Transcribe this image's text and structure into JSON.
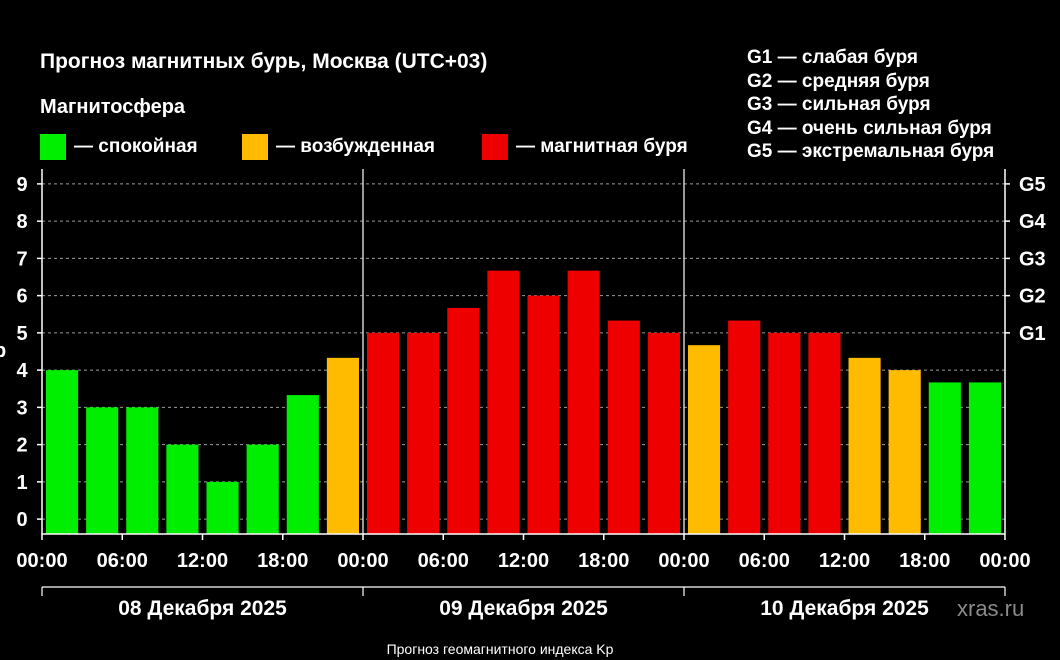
{
  "title": "Прогноз магнитных бурь, Москва (UTC+03)",
  "legend": {
    "title": "Магнитосфера",
    "items": [
      {
        "label": "— спокойная",
        "color": "#00ee00"
      },
      {
        "label": "— возбужденная",
        "color": "#ffbb00"
      },
      {
        "label": "— магнитная буря",
        "color": "#ee0000"
      }
    ]
  },
  "g_scale": [
    "G1 — слабая буря",
    "G2 — средняя буря",
    "G3 — сильная буря",
    "G4 — очень сильная буря",
    "G5 — экстремальная буря"
  ],
  "watermark": "xras.ru",
  "footnote": "Прогноз геомагнитного индекса Kp",
  "ylabel_fragment": "p",
  "chart_data": {
    "type": "bar",
    "title": "Прогноз магнитных бурь, Москва (UTC+03)",
    "ylabel": "Kp",
    "ylim": [
      -0.4,
      9.4
    ],
    "yticks": [
      "0",
      "1",
      "2",
      "3",
      "4",
      "5",
      "6",
      "7",
      "8",
      "9"
    ],
    "right_ticks": [
      {
        "label": "G1",
        "value": 5
      },
      {
        "label": "G2",
        "value": 6
      },
      {
        "label": "G3",
        "value": 7
      },
      {
        "label": "G4",
        "value": 8
      },
      {
        "label": "G5",
        "value": 9
      }
    ],
    "days": [
      {
        "label": "08 Декабря 2025",
        "ticks": [
          "00:00",
          "06:00",
          "12:00",
          "18:00"
        ]
      },
      {
        "label": "09 Декабря 2025",
        "ticks": [
          "00:00",
          "06:00",
          "12:00",
          "18:00"
        ]
      },
      {
        "label": "10 Декабря 2025",
        "ticks": [
          "00:00",
          "06:00",
          "12:00",
          "18:00",
          "00:00"
        ]
      }
    ],
    "interval_hours": 3,
    "values": [
      4.0,
      3.0,
      3.0,
      2.0,
      1.0,
      2.0,
      3.33,
      4.33,
      5.0,
      5.0,
      5.67,
      6.67,
      6.0,
      6.67,
      5.33,
      5.0,
      4.67,
      5.33,
      5.0,
      5.0,
      4.33,
      4.0,
      3.67,
      3.67
    ],
    "categories": [
      "quiet",
      "quiet",
      "quiet",
      "quiet",
      "quiet",
      "quiet",
      "quiet",
      "active",
      "storm",
      "storm",
      "storm",
      "storm",
      "storm",
      "storm",
      "storm",
      "storm",
      "active",
      "storm",
      "storm",
      "storm",
      "active",
      "active",
      "quiet",
      "quiet"
    ],
    "colors": {
      "quiet": "#00ee00",
      "active": "#ffbb00",
      "storm": "#ee0000"
    },
    "grid": "horizontal dashed"
  }
}
